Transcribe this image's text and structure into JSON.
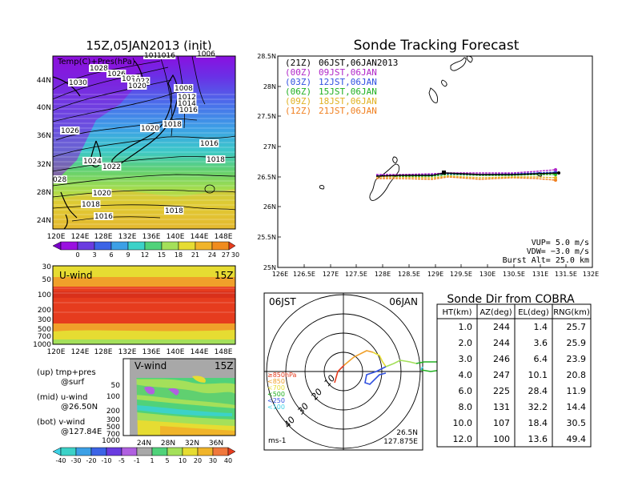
{
  "colors": {
    "purple": "#a010e0",
    "violet": "#6a3ce0",
    "blue": "#3ca0e6",
    "cyan": "#3cd2e6",
    "green": "#50d27a",
    "lime": "#a4e05a",
    "yellow": "#e6dc32",
    "orange": "#f0a02a",
    "red": "#e63c1e",
    "darkred": "#c8281e",
    "gray": "#a8a8a8"
  },
  "left_top": {
    "title": "15Z,05JAN2013 (init)",
    "label": "Temp(C)+Pres(hPa)",
    "yticks": [
      "44N",
      "40N",
      "36N",
      "32N",
      "28N",
      "24N"
    ],
    "xticks": [
      "120E",
      "124E",
      "128E",
      "132E",
      "136E",
      "140E",
      "144E",
      "148E"
    ],
    "isobars": [
      {
        "text": "1018",
        "x": 180,
        "y": 72
      },
      {
        "text": "1016",
        "x": 196,
        "y": 72
      },
      {
        "text": "1006",
        "x": 246,
        "y": 70
      },
      {
        "text": "1028",
        "x": 112,
        "y": 88
      },
      {
        "text": "1026",
        "x": 134,
        "y": 95
      },
      {
        "text": "1024",
        "x": 152,
        "y": 101
      },
      {
        "text": "1022",
        "x": 164,
        "y": 104
      },
      {
        "text": "1020",
        "x": 160,
        "y": 110
      },
      {
        "text": "1030",
        "x": 86,
        "y": 106
      },
      {
        "text": "1008",
        "x": 218,
        "y": 113
      },
      {
        "text": "1012",
        "x": 222,
        "y": 124
      },
      {
        "text": "1014",
        "x": 222,
        "y": 132
      },
      {
        "text": "1016",
        "x": 224,
        "y": 140
      },
      {
        "text": "1018",
        "x": 204,
        "y": 158
      },
      {
        "text": "1020",
        "x": 176,
        "y": 163
      },
      {
        "text": "1026",
        "x": 76,
        "y": 166
      },
      {
        "text": "1016",
        "x": 250,
        "y": 182
      },
      {
        "text": "1018",
        "x": 258,
        "y": 202
      },
      {
        "text": "1024",
        "x": 104,
        "y": 204
      },
      {
        "text": "1022",
        "x": 128,
        "y": 211
      },
      {
        "text": "028",
        "x": 66,
        "y": 227
      },
      {
        "text": "1020",
        "x": 116,
        "y": 244
      },
      {
        "text": "1018",
        "x": 102,
        "y": 258
      },
      {
        "text": "1018",
        "x": 206,
        "y": 266
      },
      {
        "text": "1016",
        "x": 118,
        "y": 273
      }
    ],
    "colorbar": [
      "0",
      "3",
      "6",
      "9",
      "12",
      "15",
      "18",
      "21",
      "24",
      "27",
      "30"
    ]
  },
  "left_mid": {
    "label": "U-wind",
    "time": "15Z",
    "yticks": [
      "30",
      "50",
      "100",
      "200",
      "300",
      "500",
      "700",
      "1000"
    ],
    "xticks": [
      "120E",
      "124E",
      "128E",
      "132E",
      "136E",
      "140E",
      "144E",
      "148E"
    ]
  },
  "left_bot": {
    "label": "V-wind",
    "time": "15Z",
    "yticks": [
      "50",
      "100",
      "200",
      "300",
      "500",
      "700",
      "1000"
    ],
    "xticks": [
      "24N",
      "28N",
      "32N",
      "36N"
    ],
    "colorbar": [
      "-40",
      "-30",
      "-20",
      "-10",
      "-5",
      "-1",
      "1",
      "5",
      "10",
      "20",
      "30",
      "40"
    ]
  },
  "legend_notes": {
    "l1": "(up) tmp+pres",
    "l2": "@surf",
    "l3": "(mid) u-wind",
    "l4": "@26.50N",
    "l5": "(bot) v-wind",
    "l6": "@127.84E"
  },
  "tracking": {
    "title": "Sonde Tracking Forecast",
    "yticks": [
      "28.5N",
      "28N",
      "27.5N",
      "27N",
      "26.5N",
      "26N",
      "25.5N",
      "25N"
    ],
    "xticks": [
      "126E",
      "126.5E",
      "127E",
      "127.5E",
      "128E",
      "128.5E",
      "129E",
      "129.5E",
      "130E",
      "130.5E",
      "131E",
      "131.5E",
      "132E"
    ],
    "runs": [
      {
        "init": "(21Z)",
        "label": "06JST,06JAN2013",
        "color": "#000000"
      },
      {
        "init": "(00Z)",
        "label": "09JST,06JAN",
        "color": "#b026c8"
      },
      {
        "init": "(03Z)",
        "label": "12JST,06JAN",
        "color": "#3050e0"
      },
      {
        "init": "(06Z)",
        "label": "15JST,06JAN",
        "color": "#20b020"
      },
      {
        "init": "(09Z)",
        "label": "18JST,06JAN",
        "color": "#e0b020"
      },
      {
        "init": "(12Z)",
        "label": "21JST,06JAN",
        "color": "#f08020"
      }
    ],
    "params": {
      "vup": "VUP=  5.0  m/s",
      "vdw": "VDW= −3.0  m/s",
      "burst": "Burst Alt=  25.0  km"
    }
  },
  "chart_data": {
    "type": "table",
    "title": "Sonde Dir from COBRA",
    "columns": [
      "HT(km)",
      "AZ(deg)",
      "EL(deg)",
      "RNG(km)"
    ],
    "rows": [
      [
        "1.0",
        "244",
        "1.4",
        "25.7"
      ],
      [
        "2.0",
        "244",
        "3.6",
        "25.9"
      ],
      [
        "3.0",
        "246",
        "6.4",
        "23.9"
      ],
      [
        "4.0",
        "247",
        "10.1",
        "20.8"
      ],
      [
        "6.0",
        "225",
        "28.4",
        "11.9"
      ],
      [
        "8.0",
        "131",
        "32.2",
        "14.4"
      ],
      [
        "10.0",
        "107",
        "18.4",
        "30.5"
      ],
      [
        "12.0",
        "100",
        "13.6",
        "49.4"
      ]
    ]
  },
  "polar": {
    "left_label": "06JST",
    "right_label": "06JAN",
    "rings": [
      "10",
      "20",
      "30",
      "40"
    ],
    "levels": [
      {
        "text": "≥850hPa",
        "color": "#e63c1e"
      },
      {
        "text": "<850",
        "color": "#f0a02a"
      },
      {
        "text": "<700",
        "color": "#e6dc32"
      },
      {
        "text": "<500",
        "color": "#20b020"
      },
      {
        "text": "<250",
        "color": "#3050e0"
      },
      {
        "text": "<100",
        "color": "#3cd2e6"
      }
    ],
    "unit": "ms-1",
    "loc_lat": "26.5N",
    "loc_lon": "127.875E"
  }
}
